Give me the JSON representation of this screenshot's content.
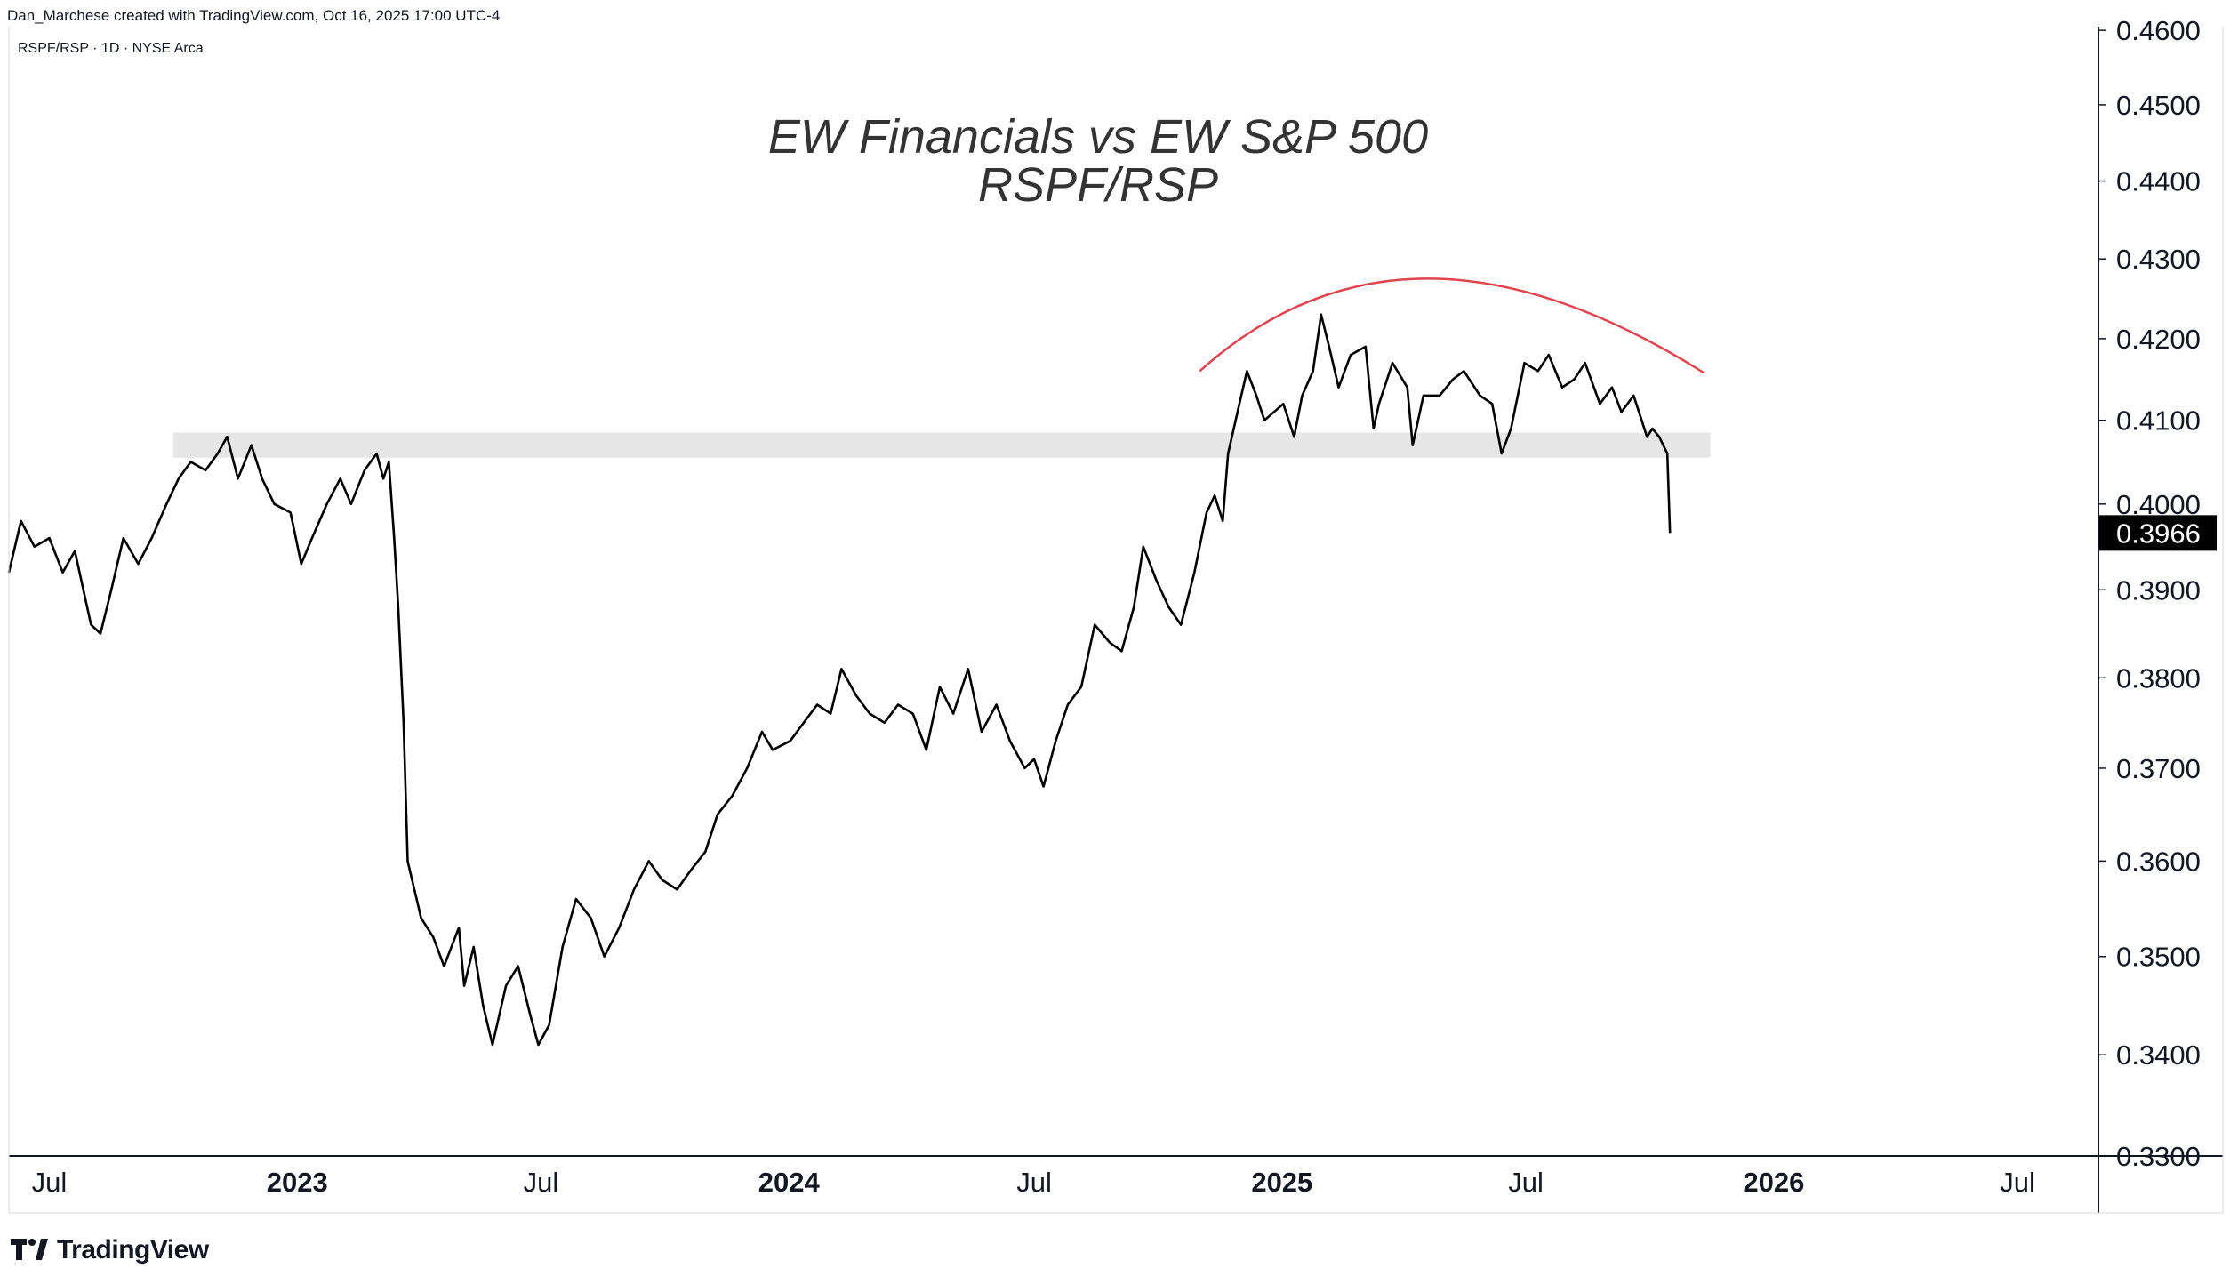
{
  "header": {
    "credit": "Dan_Marchese created with TradingView.com, Oct 16, 2025 17:00 UTC-4",
    "symbol_info": "RSPF/RSP · 1D · NYSE Arca"
  },
  "footer": {
    "brand": "TradingView"
  },
  "colors": {
    "line": "#000000",
    "arc": "#e0444f",
    "band": "#e6e6e6",
    "axis": "#131722",
    "last_badge_bg": "#000000",
    "last_badge_fg": "#ffffff"
  },
  "chart_data": {
    "type": "line",
    "title": "EW Financials vs EW S&P 500",
    "subtitle": "RSPF/RSP",
    "series": [
      {
        "name": "RSPF/RSP",
        "points": [
          [
            "2022-06-01",
            0.392
          ],
          [
            "2022-06-10",
            0.398
          ],
          [
            "2022-06-20",
            0.395
          ],
          [
            "2022-07-01",
            0.396
          ],
          [
            "2022-07-11",
            0.392
          ],
          [
            "2022-07-20",
            0.3945
          ],
          [
            "2022-08-01",
            0.386
          ],
          [
            "2022-08-08",
            0.385
          ],
          [
            "2022-08-16",
            0.39
          ],
          [
            "2022-08-25",
            0.396
          ],
          [
            "2022-09-05",
            0.393
          ],
          [
            "2022-09-15",
            0.396
          ],
          [
            "2022-09-26",
            0.4
          ],
          [
            "2022-10-05",
            0.403
          ],
          [
            "2022-10-14",
            0.405
          ],
          [
            "2022-10-25",
            0.404
          ],
          [
            "2022-11-03",
            0.406
          ],
          [
            "2022-11-10",
            0.408
          ],
          [
            "2022-11-18",
            0.403
          ],
          [
            "2022-11-28",
            0.407
          ],
          [
            "2022-12-06",
            0.403
          ],
          [
            "2022-12-15",
            0.4
          ],
          [
            "2022-12-27",
            0.399
          ],
          [
            "2023-01-04",
            0.393
          ],
          [
            "2023-01-12",
            0.396
          ],
          [
            "2023-01-23",
            0.4
          ],
          [
            "2023-02-02",
            0.403
          ],
          [
            "2023-02-10",
            0.4
          ],
          [
            "2023-02-20",
            0.404
          ],
          [
            "2023-03-01",
            0.406
          ],
          [
            "2023-03-06",
            0.403
          ],
          [
            "2023-03-10",
            0.405
          ],
          [
            "2023-03-14",
            0.396
          ],
          [
            "2023-03-17",
            0.388
          ],
          [
            "2023-03-21",
            0.375
          ],
          [
            "2023-03-24",
            0.36
          ],
          [
            "2023-04-03",
            0.354
          ],
          [
            "2023-04-12",
            0.352
          ],
          [
            "2023-04-20",
            0.349
          ],
          [
            "2023-05-01",
            0.353
          ],
          [
            "2023-05-05",
            0.347
          ],
          [
            "2023-05-12",
            0.351
          ],
          [
            "2023-05-19",
            0.345
          ],
          [
            "2023-05-26",
            0.341
          ],
          [
            "2023-06-05",
            0.347
          ],
          [
            "2023-06-14",
            0.349
          ],
          [
            "2023-06-23",
            0.344
          ],
          [
            "2023-06-29",
            0.341
          ],
          [
            "2023-07-07",
            0.343
          ],
          [
            "2023-07-17",
            0.351
          ],
          [
            "2023-07-27",
            0.356
          ],
          [
            "2023-08-07",
            0.354
          ],
          [
            "2023-08-17",
            0.35
          ],
          [
            "2023-08-28",
            0.353
          ],
          [
            "2023-09-08",
            0.357
          ],
          [
            "2023-09-19",
            0.36
          ],
          [
            "2023-09-29",
            0.358
          ],
          [
            "2023-10-10",
            0.357
          ],
          [
            "2023-10-20",
            0.359
          ],
          [
            "2023-10-31",
            0.361
          ],
          [
            "2023-11-09",
            0.365
          ],
          [
            "2023-11-20",
            0.367
          ],
          [
            "2023-12-01",
            0.37
          ],
          [
            "2023-12-12",
            0.374
          ],
          [
            "2023-12-20",
            0.372
          ],
          [
            "2024-01-02",
            0.373
          ],
          [
            "2024-01-12",
            0.375
          ],
          [
            "2024-01-22",
            0.377
          ],
          [
            "2024-02-01",
            0.376
          ],
          [
            "2024-02-09",
            0.381
          ],
          [
            "2024-02-20",
            0.378
          ],
          [
            "2024-03-01",
            0.376
          ],
          [
            "2024-03-12",
            0.375
          ],
          [
            "2024-03-22",
            0.377
          ],
          [
            "2024-04-02",
            0.376
          ],
          [
            "2024-04-12",
            0.372
          ],
          [
            "2024-04-22",
            0.379
          ],
          [
            "2024-05-02",
            0.376
          ],
          [
            "2024-05-13",
            0.381
          ],
          [
            "2024-05-23",
            0.374
          ],
          [
            "2024-06-03",
            0.377
          ],
          [
            "2024-06-13",
            0.373
          ],
          [
            "2024-06-24",
            0.37
          ],
          [
            "2024-07-01",
            0.371
          ],
          [
            "2024-07-08",
            0.368
          ],
          [
            "2024-07-17",
            0.373
          ],
          [
            "2024-07-26",
            0.377
          ],
          [
            "2024-08-05",
            0.379
          ],
          [
            "2024-08-15",
            0.386
          ],
          [
            "2024-08-26",
            0.384
          ],
          [
            "2024-09-04",
            0.383
          ],
          [
            "2024-09-13",
            0.388
          ],
          [
            "2024-09-20",
            0.395
          ],
          [
            "2024-09-30",
            0.391
          ],
          [
            "2024-10-09",
            0.388
          ],
          [
            "2024-10-18",
            0.386
          ],
          [
            "2024-10-28",
            0.392
          ],
          [
            "2024-11-06",
            0.399
          ],
          [
            "2024-11-12",
            0.401
          ],
          [
            "2024-11-18",
            0.398
          ],
          [
            "2024-11-22",
            0.406
          ],
          [
            "2024-11-29",
            0.411
          ],
          [
            "2024-12-06",
            0.416
          ],
          [
            "2024-12-13",
            0.413
          ],
          [
            "2024-12-19",
            0.41
          ],
          [
            "2025-01-02",
            0.412
          ],
          [
            "2025-01-10",
            0.408
          ],
          [
            "2025-01-16",
            0.413
          ],
          [
            "2025-01-24",
            0.416
          ],
          [
            "2025-01-30",
            0.423
          ],
          [
            "2025-02-05",
            0.419
          ],
          [
            "2025-02-12",
            0.414
          ],
          [
            "2025-02-21",
            0.418
          ],
          [
            "2025-03-04",
            0.419
          ],
          [
            "2025-03-10",
            0.409
          ],
          [
            "2025-03-14",
            0.412
          ],
          [
            "2025-03-24",
            0.417
          ],
          [
            "2025-04-04",
            0.414
          ],
          [
            "2025-04-08",
            0.407
          ],
          [
            "2025-04-16",
            0.413
          ],
          [
            "2025-04-28",
            0.413
          ],
          [
            "2025-05-08",
            0.415
          ],
          [
            "2025-05-16",
            0.416
          ],
          [
            "2025-05-28",
            0.413
          ],
          [
            "2025-06-06",
            0.412
          ],
          [
            "2025-06-13",
            0.406
          ],
          [
            "2025-06-20",
            0.409
          ],
          [
            "2025-06-30",
            0.417
          ],
          [
            "2025-07-10",
            0.416
          ],
          [
            "2025-07-18",
            0.418
          ],
          [
            "2025-07-28",
            0.414
          ],
          [
            "2025-08-06",
            0.415
          ],
          [
            "2025-08-14",
            0.417
          ],
          [
            "2025-08-25",
            0.412
          ],
          [
            "2025-09-03",
            0.414
          ],
          [
            "2025-09-10",
            0.411
          ],
          [
            "2025-09-19",
            0.413
          ],
          [
            "2025-09-29",
            0.408
          ],
          [
            "2025-10-03",
            0.409
          ],
          [
            "2025-10-08",
            0.408
          ],
          [
            "2025-10-14",
            0.406
          ],
          [
            "2025-10-16",
            0.3966
          ]
        ]
      }
    ],
    "x_ticks": [
      {
        "date": "2022-07-01",
        "label": "Jul",
        "bold": false
      },
      {
        "date": "2023-01-01",
        "label": "2023",
        "bold": true
      },
      {
        "date": "2023-07-01",
        "label": "Jul",
        "bold": false
      },
      {
        "date": "2024-01-01",
        "label": "2024",
        "bold": true
      },
      {
        "date": "2024-07-01",
        "label": "Jul",
        "bold": false
      },
      {
        "date": "2025-01-01",
        "label": "2025",
        "bold": true
      },
      {
        "date": "2025-07-01",
        "label": "Jul",
        "bold": false
      },
      {
        "date": "2026-01-01",
        "label": "2026",
        "bold": true
      },
      {
        "date": "2026-07-01",
        "label": "Jul",
        "bold": false
      }
    ],
    "y_ticks": [
      "0.4600",
      "0.4500",
      "0.4400",
      "0.4300",
      "0.4200",
      "0.4100",
      "0.4000",
      "0.3900",
      "0.3800",
      "0.3700",
      "0.3600",
      "0.3500",
      "0.3400",
      "0.3300"
    ],
    "last_value": "0.3966",
    "xlim": [
      "2022-06-01",
      "2026-08-30"
    ],
    "ylim": [
      0.33,
      0.4605
    ],
    "scale": "log",
    "grid": false,
    "annotations": [
      {
        "type": "band",
        "y0": 0.4055,
        "y1": 0.4085,
        "x0": "2022-10-01",
        "x1": "2025-11-15"
      },
      {
        "type": "arc",
        "points": [
          [
            "2024-11-01",
            0.416
          ],
          [
            "2025-04-20",
            0.4275
          ],
          [
            "2025-11-10",
            0.4158
          ]
        ]
      }
    ]
  }
}
